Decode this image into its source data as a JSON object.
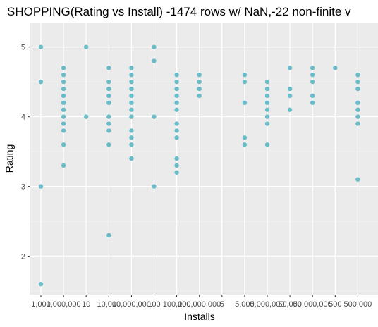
{
  "chart_data": {
    "type": "scatter",
    "title": "SHOPPING(Rating vs Install) -1474 rows w/ NaN,-22 non-finite v",
    "xlabel": "Installs",
    "ylabel": "Rating",
    "x_categories": [
      "1,000",
      "1,000,000",
      "10",
      "10,000",
      "10,000,000",
      "100",
      "100,000",
      "100,000,000",
      "5",
      "5,000",
      "5,000,000",
      "50,000",
      "50,000,000",
      "500",
      "500,000"
    ],
    "ylim": [
      1.45,
      5.35
    ],
    "y_ticks": [
      2,
      3,
      4,
      5
    ],
    "grid": true,
    "point_color": "#6bbcc9",
    "panel_color": "#ebebeb",
    "series": [
      {
        "points": [
          {
            "x": "1,000",
            "y": 5.0
          },
          {
            "x": "1,000",
            "y": 4.5
          },
          {
            "x": "1,000",
            "y": 3.0
          },
          {
            "x": "1,000",
            "y": 1.6
          },
          {
            "x": "1,000,000",
            "y": 4.7
          },
          {
            "x": "1,000,000",
            "y": 4.6
          },
          {
            "x": "1,000,000",
            "y": 4.5
          },
          {
            "x": "1,000,000",
            "y": 4.4
          },
          {
            "x": "1,000,000",
            "y": 4.3
          },
          {
            "x": "1,000,000",
            "y": 4.2
          },
          {
            "x": "1,000,000",
            "y": 4.1
          },
          {
            "x": "1,000,000",
            "y": 4.0
          },
          {
            "x": "1,000,000",
            "y": 3.9
          },
          {
            "x": "1,000,000",
            "y": 3.8
          },
          {
            "x": "1,000,000",
            "y": 3.6
          },
          {
            "x": "1,000,000",
            "y": 3.3
          },
          {
            "x": "10",
            "y": 5.0
          },
          {
            "x": "10",
            "y": 4.0
          },
          {
            "x": "10,000",
            "y": 4.7
          },
          {
            "x": "10,000",
            "y": 4.5
          },
          {
            "x": "10,000",
            "y": 4.4
          },
          {
            "x": "10,000",
            "y": 4.3
          },
          {
            "x": "10,000",
            "y": 4.2
          },
          {
            "x": "10,000",
            "y": 4.0
          },
          {
            "x": "10,000",
            "y": 3.9
          },
          {
            "x": "10,000",
            "y": 3.8
          },
          {
            "x": "10,000",
            "y": 3.6
          },
          {
            "x": "10,000",
            "y": 2.3
          },
          {
            "x": "10,000,000",
            "y": 4.7
          },
          {
            "x": "10,000,000",
            "y": 4.6
          },
          {
            "x": "10,000,000",
            "y": 4.5
          },
          {
            "x": "10,000,000",
            "y": 4.4
          },
          {
            "x": "10,000,000",
            "y": 4.3
          },
          {
            "x": "10,000,000",
            "y": 4.2
          },
          {
            "x": "10,000,000",
            "y": 4.1
          },
          {
            "x": "10,000,000",
            "y": 4.0
          },
          {
            "x": "10,000,000",
            "y": 3.8
          },
          {
            "x": "10,000,000",
            "y": 3.7
          },
          {
            "x": "10,000,000",
            "y": 3.6
          },
          {
            "x": "10,000,000",
            "y": 3.4
          },
          {
            "x": "100",
            "y": 5.0
          },
          {
            "x": "100",
            "y": 4.8
          },
          {
            "x": "100",
            "y": 4.0
          },
          {
            "x": "100",
            "y": 3.0
          },
          {
            "x": "100,000",
            "y": 4.6
          },
          {
            "x": "100,000",
            "y": 4.5
          },
          {
            "x": "100,000",
            "y": 4.4
          },
          {
            "x": "100,000",
            "y": 4.3
          },
          {
            "x": "100,000",
            "y": 4.2
          },
          {
            "x": "100,000",
            "y": 4.1
          },
          {
            "x": "100,000",
            "y": 3.9
          },
          {
            "x": "100,000",
            "y": 3.8
          },
          {
            "x": "100,000",
            "y": 3.7
          },
          {
            "x": "100,000",
            "y": 3.4
          },
          {
            "x": "100,000",
            "y": 3.3
          },
          {
            "x": "100,000",
            "y": 3.2
          },
          {
            "x": "100,000,000",
            "y": 4.6
          },
          {
            "x": "100,000,000",
            "y": 4.5
          },
          {
            "x": "100,000,000",
            "y": 4.4
          },
          {
            "x": "100,000,000",
            "y": 4.3
          },
          {
            "x": "5,000",
            "y": 4.6
          },
          {
            "x": "5,000",
            "y": 4.5
          },
          {
            "x": "5,000",
            "y": 4.2
          },
          {
            "x": "5,000",
            "y": 3.7
          },
          {
            "x": "5,000",
            "y": 3.6
          },
          {
            "x": "5,000,000",
            "y": 4.5
          },
          {
            "x": "5,000,000",
            "y": 4.4
          },
          {
            "x": "5,000,000",
            "y": 4.3
          },
          {
            "x": "5,000,000",
            "y": 4.2
          },
          {
            "x": "5,000,000",
            "y": 4.1
          },
          {
            "x": "5,000,000",
            "y": 4.0
          },
          {
            "x": "5,000,000",
            "y": 3.9
          },
          {
            "x": "5,000,000",
            "y": 3.6
          },
          {
            "x": "50,000",
            "y": 4.7
          },
          {
            "x": "50,000",
            "y": 4.4
          },
          {
            "x": "50,000",
            "y": 4.3
          },
          {
            "x": "50,000",
            "y": 4.1
          },
          {
            "x": "50,000,000",
            "y": 4.7
          },
          {
            "x": "50,000,000",
            "y": 4.6
          },
          {
            "x": "50,000,000",
            "y": 4.5
          },
          {
            "x": "50,000,000",
            "y": 4.3
          },
          {
            "x": "50,000,000",
            "y": 4.2
          },
          {
            "x": "500",
            "y": 4.7
          },
          {
            "x": "500,000",
            "y": 4.6
          },
          {
            "x": "500,000",
            "y": 4.5
          },
          {
            "x": "500,000",
            "y": 4.4
          },
          {
            "x": "500,000",
            "y": 4.2
          },
          {
            "x": "500,000",
            "y": 4.1
          },
          {
            "x": "500,000",
            "y": 4.0
          },
          {
            "x": "500,000",
            "y": 3.9
          },
          {
            "x": "500,000",
            "y": 3.1
          }
        ]
      }
    ]
  }
}
